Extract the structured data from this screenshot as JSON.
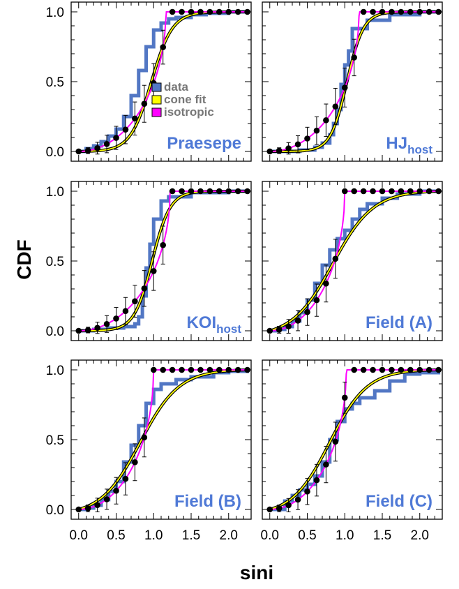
{
  "colors": {
    "data": "#5277c4",
    "cone_fit": "#ffff00",
    "isotropic": "#ff00ff",
    "label": "#4f79d6",
    "legend_text": "#777777"
  },
  "chart_data": {
    "type": "line",
    "xlabel": "sini",
    "ylabel": "CDF",
    "xlim": [
      -0.1,
      2.3
    ],
    "ylim": [
      -0.07,
      1.07
    ],
    "x_ticks": [
      "0.0",
      "0.5",
      "1.0",
      "1.5",
      "2.0"
    ],
    "y_ticks": [
      "0.0",
      "0.5",
      "1.0"
    ],
    "legend": {
      "position": "inside first panel, center",
      "entries": [
        "data",
        "cone fit",
        "isotropic"
      ]
    },
    "isotropic_points_x": [
      0.0,
      0.125,
      0.25,
      0.375,
      0.5,
      0.625,
      0.75,
      0.875,
      1.0,
      1.125,
      1.25,
      1.375,
      1.5,
      1.625,
      1.75,
      1.875,
      2.0,
      2.125,
      2.25
    ],
    "panels": [
      {
        "label": "Praesepe",
        "label_sub": "",
        "iso_scale": 0.86,
        "cone_mid": 0.97,
        "cone_width": 0.14,
        "data": [
          [
            0.0,
            0.0
          ],
          [
            0.1,
            0.02
          ],
          [
            0.2,
            0.04
          ],
          [
            0.3,
            0.07
          ],
          [
            0.4,
            0.11
          ],
          [
            0.5,
            0.16
          ],
          [
            0.6,
            0.25
          ],
          [
            0.7,
            0.4
          ],
          [
            0.8,
            0.58
          ],
          [
            0.9,
            0.75
          ],
          [
            1.0,
            0.87
          ],
          [
            1.1,
            0.92
          ],
          [
            1.2,
            0.95
          ],
          [
            1.3,
            0.96
          ],
          [
            1.5,
            0.98
          ],
          [
            1.7,
            0.99
          ],
          [
            2.0,
            1.0
          ],
          [
            2.25,
            1.0
          ]
        ]
      },
      {
        "label": "HJ",
        "label_sub": "host",
        "iso_scale": 0.84,
        "cone_mid": 1.03,
        "cone_width": 0.11,
        "data": [
          [
            0.0,
            0.0
          ],
          [
            0.2,
            0.0
          ],
          [
            0.4,
            0.01
          ],
          [
            0.6,
            0.03
          ],
          [
            0.7,
            0.06
          ],
          [
            0.8,
            0.12
          ],
          [
            0.85,
            0.2
          ],
          [
            0.9,
            0.3
          ],
          [
            0.95,
            0.48
          ],
          [
            1.0,
            0.62
          ],
          [
            1.05,
            0.72
          ],
          [
            1.1,
            0.88
          ],
          [
            1.3,
            0.94
          ],
          [
            1.6,
            0.98
          ],
          [
            2.0,
            1.0
          ],
          [
            2.25,
            1.0
          ]
        ]
      },
      {
        "label": "KOI",
        "label_sub": "host",
        "iso_scale": 0.82,
        "cone_mid": 0.98,
        "cone_width": 0.12,
        "data": [
          [
            0.0,
            0.0
          ],
          [
            0.2,
            0.01
          ],
          [
            0.4,
            0.02
          ],
          [
            0.6,
            0.03
          ],
          [
            0.75,
            0.05
          ],
          [
            0.8,
            0.1
          ],
          [
            0.85,
            0.25
          ],
          [
            0.9,
            0.45
          ],
          [
            0.95,
            0.62
          ],
          [
            1.0,
            0.8
          ],
          [
            1.1,
            0.93
          ],
          [
            1.2,
            0.96
          ],
          [
            1.5,
            0.99
          ],
          [
            2.0,
            1.0
          ],
          [
            2.25,
            1.0
          ]
        ]
      },
      {
        "label": "Field (A)",
        "label_sub": "",
        "iso_scale": 1.0,
        "cone_mid": 0.84,
        "cone_width": 0.27,
        "data": [
          [
            0.0,
            0.0
          ],
          [
            0.1,
            0.01
          ],
          [
            0.2,
            0.03
          ],
          [
            0.3,
            0.07
          ],
          [
            0.4,
            0.13
          ],
          [
            0.5,
            0.22
          ],
          [
            0.6,
            0.34
          ],
          [
            0.7,
            0.47
          ],
          [
            0.8,
            0.58
          ],
          [
            0.9,
            0.66
          ],
          [
            1.0,
            0.72
          ],
          [
            1.1,
            0.8
          ],
          [
            1.2,
            0.87
          ],
          [
            1.3,
            0.91
          ],
          [
            1.5,
            0.95
          ],
          [
            1.7,
            0.98
          ],
          [
            2.0,
            1.0
          ],
          [
            2.25,
            1.0
          ]
        ]
      },
      {
        "label": "Field (B)",
        "label_sub": "",
        "iso_scale": 1.0,
        "cone_mid": 0.82,
        "cone_width": 0.26,
        "data": [
          [
            0.0,
            0.0
          ],
          [
            0.1,
            0.01
          ],
          [
            0.2,
            0.03
          ],
          [
            0.3,
            0.07
          ],
          [
            0.4,
            0.13
          ],
          [
            0.5,
            0.2
          ],
          [
            0.6,
            0.34
          ],
          [
            0.7,
            0.46
          ],
          [
            0.8,
            0.6
          ],
          [
            0.9,
            0.76
          ],
          [
            1.0,
            0.86
          ],
          [
            1.1,
            0.9
          ],
          [
            1.3,
            0.93
          ],
          [
            1.5,
            0.95
          ],
          [
            1.8,
            0.98
          ],
          [
            2.0,
            0.99
          ],
          [
            2.25,
            1.0
          ]
        ]
      },
      {
        "label": "Field (C)",
        "label_sub": "",
        "iso_scale": 0.98,
        "cone_mid": 0.8,
        "cone_width": 0.25,
        "data": [
          [
            0.0,
            0.0
          ],
          [
            0.15,
            0.0
          ],
          [
            0.2,
            0.06
          ],
          [
            0.3,
            0.1
          ],
          [
            0.4,
            0.14
          ],
          [
            0.5,
            0.18
          ],
          [
            0.6,
            0.24
          ],
          [
            0.7,
            0.34
          ],
          [
            0.8,
            0.5
          ],
          [
            0.9,
            0.63
          ],
          [
            1.0,
            0.72
          ],
          [
            1.1,
            0.76
          ],
          [
            1.2,
            0.8
          ],
          [
            1.4,
            0.85
          ],
          [
            1.6,
            0.92
          ],
          [
            1.8,
            0.97
          ],
          [
            2.0,
            0.98
          ],
          [
            2.25,
            1.0
          ]
        ]
      }
    ]
  }
}
